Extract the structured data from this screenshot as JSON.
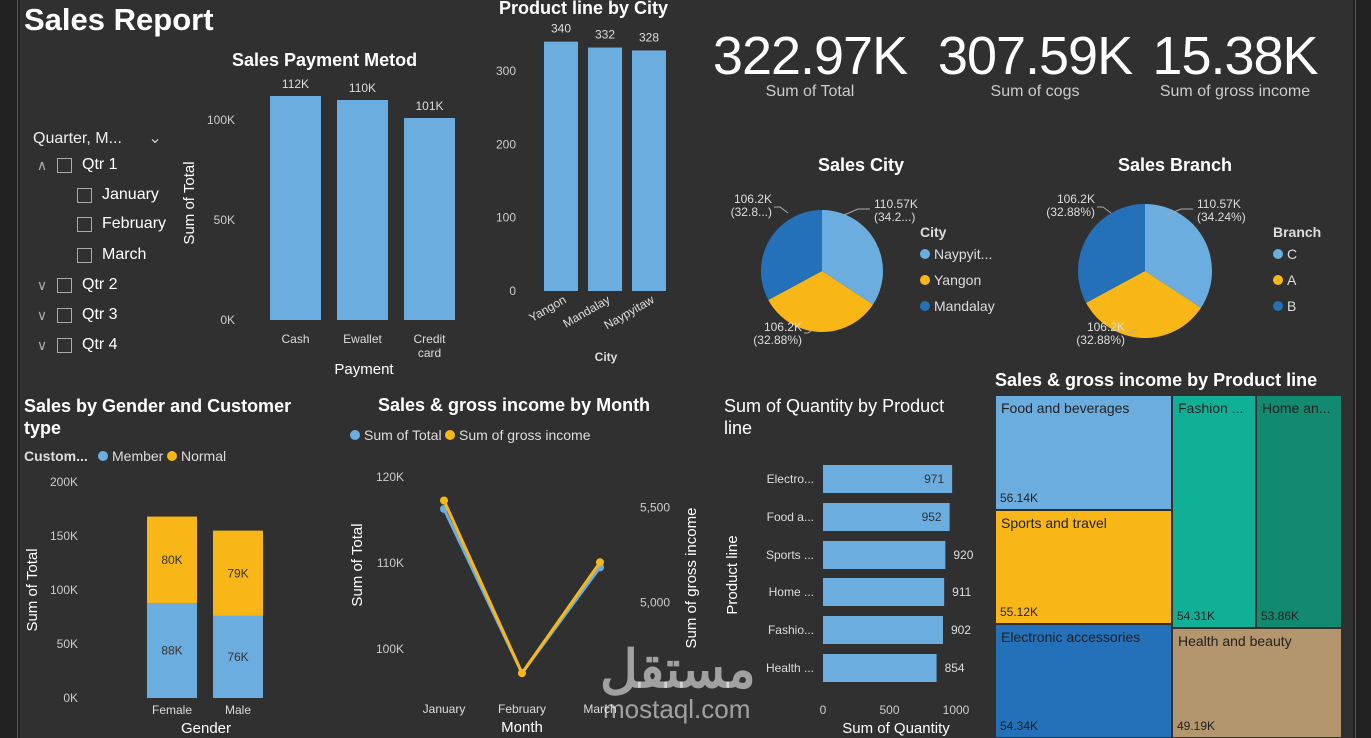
{
  "title": "Sales Report",
  "colors": {
    "blue": "#6CADDF",
    "yellow": "#F9B717",
    "darkblue": "#2471BA",
    "teal": "#10B096",
    "darkteal": "#118A70",
    "tan": "#B3956E"
  },
  "slicer": {
    "header": "Quarter, M...",
    "items": [
      {
        "label": "Qtr 1",
        "level": 0,
        "expanded": true
      },
      {
        "label": "January",
        "level": 1
      },
      {
        "label": "February",
        "level": 1
      },
      {
        "label": "March",
        "level": 1
      },
      {
        "label": "Qtr 2",
        "level": 0,
        "expanded": false
      },
      {
        "label": "Qtr 3",
        "level": 0,
        "expanded": false
      },
      {
        "label": "Qtr 4",
        "level": 0,
        "expanded": false
      }
    ]
  },
  "kpis": [
    {
      "value": "322.97K",
      "label": "Sum of Total"
    },
    {
      "value": "307.59K",
      "label": "Sum of cogs"
    },
    {
      "value": "15.38K",
      "label": "Sum of gross income"
    }
  ],
  "payment": {
    "title": "Sales Payment Metod",
    "xlabel": "Payment",
    "ylabel": "Sum of Total",
    "yticks": [
      "0K",
      "50K",
      "100K"
    ],
    "chart_data": {
      "type": "bar",
      "categories": [
        "Cash",
        "Ewallet",
        "Credit card"
      ],
      "values": [
        112,
        110,
        101
      ],
      "labels": [
        "112K",
        "110K",
        "101K"
      ],
      "ylim": [
        0,
        120
      ]
    }
  },
  "city": {
    "title": "Product line by City",
    "xlabel": "City",
    "yticks": [
      "0",
      "100",
      "200",
      "300"
    ],
    "chart_data": {
      "type": "bar",
      "categories": [
        "Yangon",
        "Mandalay",
        "Naypyitaw"
      ],
      "values": [
        340,
        332,
        328
      ],
      "labels": [
        "340",
        "332",
        "328"
      ],
      "ylim": [
        0,
        360
      ]
    }
  },
  "salescity": {
    "title": "Sales City",
    "legend_title": "City",
    "legend": [
      "Naypyit...",
      "Yangon",
      "Mandalay"
    ],
    "labels": [
      [
        "110.57K",
        "(34.2...)"
      ],
      [
        "106.2K",
        "(32.88%)"
      ],
      [
        "106.2K",
        "(32.8...)"
      ]
    ],
    "chart_data": {
      "type": "pie",
      "categories": [
        "Naypyitaw",
        "Yangon",
        "Mandalay"
      ],
      "values": [
        34.24,
        32.88,
        32.88
      ]
    }
  },
  "salesbranch": {
    "title": "Sales Branch",
    "legend_title": "Branch",
    "legend": [
      "C",
      "A",
      "B"
    ],
    "labels": [
      [
        "110.57K",
        "(34.24%)"
      ],
      [
        "106.2K",
        "(32.88%)"
      ],
      [
        "106.2K",
        "(32.88%)"
      ]
    ],
    "chart_data": {
      "type": "pie",
      "categories": [
        "C",
        "A",
        "B"
      ],
      "values": [
        34.24,
        32.88,
        32.88
      ]
    }
  },
  "gender": {
    "title": "Sales by Gender and Customer type",
    "legend_title": "Custom...",
    "legend": [
      "Member",
      "Normal"
    ],
    "xlabel": "Gender",
    "ylabel": "Sum of Total",
    "yticks": [
      "0K",
      "50K",
      "100K",
      "150K",
      "200K"
    ],
    "chart_data": {
      "type": "bar",
      "categories": [
        "Female",
        "Male"
      ],
      "series": [
        {
          "name": "Member",
          "values": [
            88,
            76
          ],
          "labels": [
            "88K",
            "76K"
          ]
        },
        {
          "name": "Normal",
          "values": [
            80,
            79
          ],
          "labels": [
            "80K",
            "79K"
          ]
        }
      ],
      "ylim": [
        0,
        200
      ]
    }
  },
  "month": {
    "title": "Sales & gross income by Month",
    "legend": [
      "Sum of Total",
      "Sum of gross income"
    ],
    "xlabel": "Month",
    "ylabel": "Sum of Total",
    "ylabel2": "Sum of gross income",
    "yticks": [
      "100K",
      "110K",
      "120K"
    ],
    "yticks2": [
      "5,000",
      "5,500"
    ],
    "chart_data": {
      "type": "line",
      "categories": [
        "January",
        "February",
        "March"
      ],
      "series": [
        {
          "name": "Sum of Total",
          "values": [
            116.3,
            97.2,
            109.5
          ],
          "ylim": [
            95,
            122
          ]
        },
        {
          "name": "Sum of gross income",
          "values": [
            5537,
            4629,
            5212
          ],
          "ylim": [
            4530,
            5750
          ]
        }
      ]
    }
  },
  "quantity": {
    "title": "Sum of Quantity by Product line",
    "xlabel": "Sum of Quantity",
    "ylabel": "Product line",
    "xticks": [
      "0",
      "500",
      "1000"
    ],
    "chart_data": {
      "type": "bar",
      "categories": [
        "Electro...",
        "Food a...",
        "Sports ...",
        "Home ...",
        "Fashio...",
        "Health ..."
      ],
      "values": [
        971,
        952,
        920,
        911,
        902,
        854
      ],
      "labels": [
        "971",
        "952",
        "920",
        "911",
        "902",
        "854"
      ],
      "xlim": [
        0,
        1000
      ]
    }
  },
  "treemap": {
    "title": "Sales & gross income by Product line",
    "chart_data": {
      "type": "treemap",
      "categories": [
        "Food and beverages",
        "Sports and travel",
        "Electronic accessories",
        "Fashion ...",
        "Home an...",
        "Health and beauty"
      ],
      "values": [
        56.14,
        55.12,
        54.34,
        54.31,
        53.86,
        49.19
      ],
      "labels": [
        "56.14K",
        "55.12K",
        "54.34K",
        "54.31K",
        "53.86K",
        "49.19K"
      ]
    }
  },
  "watermark": {
    "arabic": "مستقل",
    "latin": "mostaql.com"
  }
}
